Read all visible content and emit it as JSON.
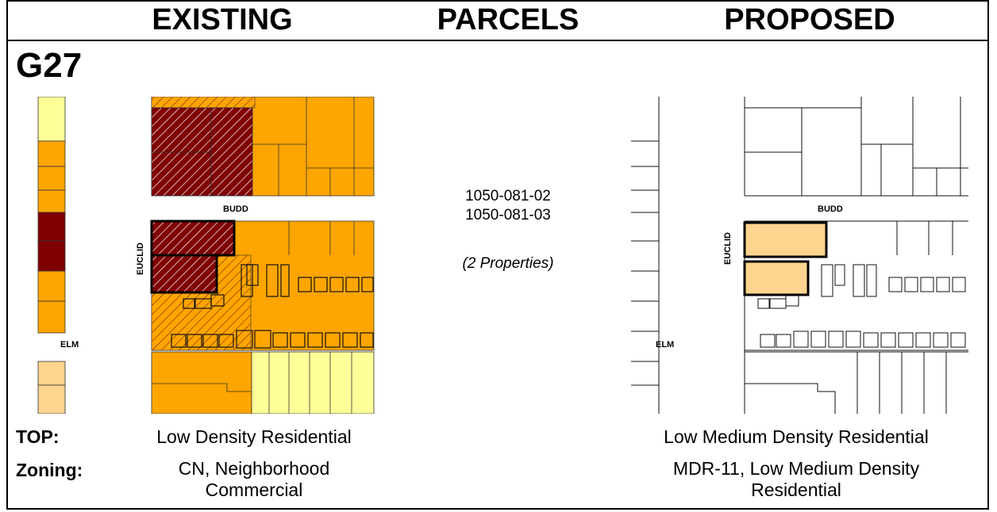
{
  "headers": {
    "existing": "EXISTING",
    "parcels": "PARCELS",
    "proposed": "PROPOSED"
  },
  "case_id": "G27",
  "parcels": {
    "ids": [
      "1050-081-02",
      "1050-081-03"
    ],
    "count_note": "(2 Properties)"
  },
  "streets": {
    "budd": "BUDD",
    "euclid": "EUCLID",
    "elm": "ELM"
  },
  "rows": {
    "top": {
      "label": "TOP:",
      "existing": "Low Density Residential",
      "proposed": "Low Medium Density Residential"
    },
    "zoning": {
      "label": "Zoning:",
      "existing_line1": "CN, Neighborhood",
      "existing_line2": "Commercial",
      "proposed_line1": "MDR-11, Low Medium Density",
      "proposed_line2": "Residential"
    }
  },
  "colors": {
    "medium_density": "#FFA500",
    "low_density": "#FFFF99",
    "commercial": "#800000",
    "low_medium_density": "#FFD590",
    "hatch_outline": "#5A1A00"
  }
}
